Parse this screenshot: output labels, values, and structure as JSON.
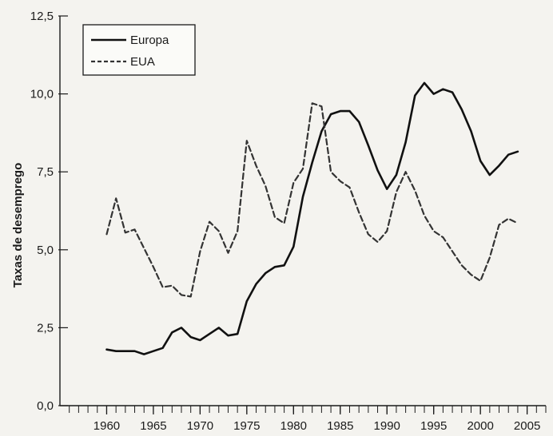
{
  "chart_data": {
    "type": "line",
    "title": "",
    "xlabel": "",
    "ylabel": "Taxas de desemprego",
    "xlim": [
      1955,
      2007
    ],
    "ylim": [
      0,
      12.5
    ],
    "x_ticks": [
      1960,
      1965,
      1970,
      1975,
      1980,
      1985,
      1990,
      1995,
      2000,
      2005
    ],
    "y_ticks": [
      "0,0",
      "2,5",
      "5,0",
      "7,5",
      "10,0",
      "12,5"
    ],
    "y_tick_values": [
      0,
      2.5,
      5.0,
      7.5,
      10.0,
      12.5
    ],
    "grid": false,
    "legend": {
      "position": "top-left"
    },
    "series": [
      {
        "name": "Europa",
        "style": "solid",
        "color": "#111111",
        "x": [
          1960,
          1961,
          1962,
          1963,
          1964,
          1965,
          1966,
          1967,
          1968,
          1969,
          1970,
          1971,
          1972,
          1973,
          1974,
          1975,
          1976,
          1977,
          1978,
          1979,
          1980,
          1981,
          1982,
          1983,
          1984,
          1985,
          1986,
          1987,
          1988,
          1989,
          1990,
          1991,
          1992,
          1993,
          1994,
          1995,
          1996,
          1997,
          1998,
          1999,
          2000,
          2001,
          2002,
          2003,
          2004
        ],
        "values": [
          1.8,
          1.75,
          1.75,
          1.75,
          1.65,
          1.75,
          1.85,
          2.35,
          2.5,
          2.2,
          2.1,
          2.3,
          2.5,
          2.25,
          2.3,
          3.35,
          3.9,
          4.25,
          4.45,
          4.5,
          5.1,
          6.7,
          7.8,
          8.8,
          9.35,
          9.45,
          9.45,
          9.1,
          8.35,
          7.55,
          6.95,
          7.4,
          8.45,
          9.95,
          10.35,
          10.0,
          10.15,
          10.05,
          9.5,
          8.8,
          7.85,
          7.4,
          7.7,
          8.05,
          8.15
        ]
      },
      {
        "name": "EUA",
        "style": "dashed",
        "color": "#333333",
        "x": [
          1960,
          1961,
          1962,
          1963,
          1964,
          1965,
          1966,
          1967,
          1968,
          1969,
          1970,
          1971,
          1972,
          1973,
          1974,
          1975,
          1976,
          1977,
          1978,
          1979,
          1980,
          1981,
          1982,
          1983,
          1984,
          1985,
          1986,
          1987,
          1988,
          1989,
          1990,
          1991,
          1992,
          1993,
          1994,
          1995,
          1996,
          1997,
          1998,
          1999,
          2000,
          2001,
          2002,
          2003,
          2004
        ],
        "values": [
          5.5,
          6.65,
          5.55,
          5.65,
          5.05,
          4.45,
          3.8,
          3.85,
          3.55,
          3.5,
          4.95,
          5.9,
          5.6,
          4.9,
          5.6,
          8.5,
          7.7,
          7.05,
          6.05,
          5.85,
          7.15,
          7.6,
          9.7,
          9.6,
          7.5,
          7.2,
          7.0,
          6.2,
          5.5,
          5.25,
          5.6,
          6.85,
          7.5,
          6.9,
          6.1,
          5.6,
          5.4,
          4.95,
          4.5,
          4.2,
          4.0,
          4.75,
          5.8,
          6.0,
          5.85
        ]
      }
    ]
  }
}
